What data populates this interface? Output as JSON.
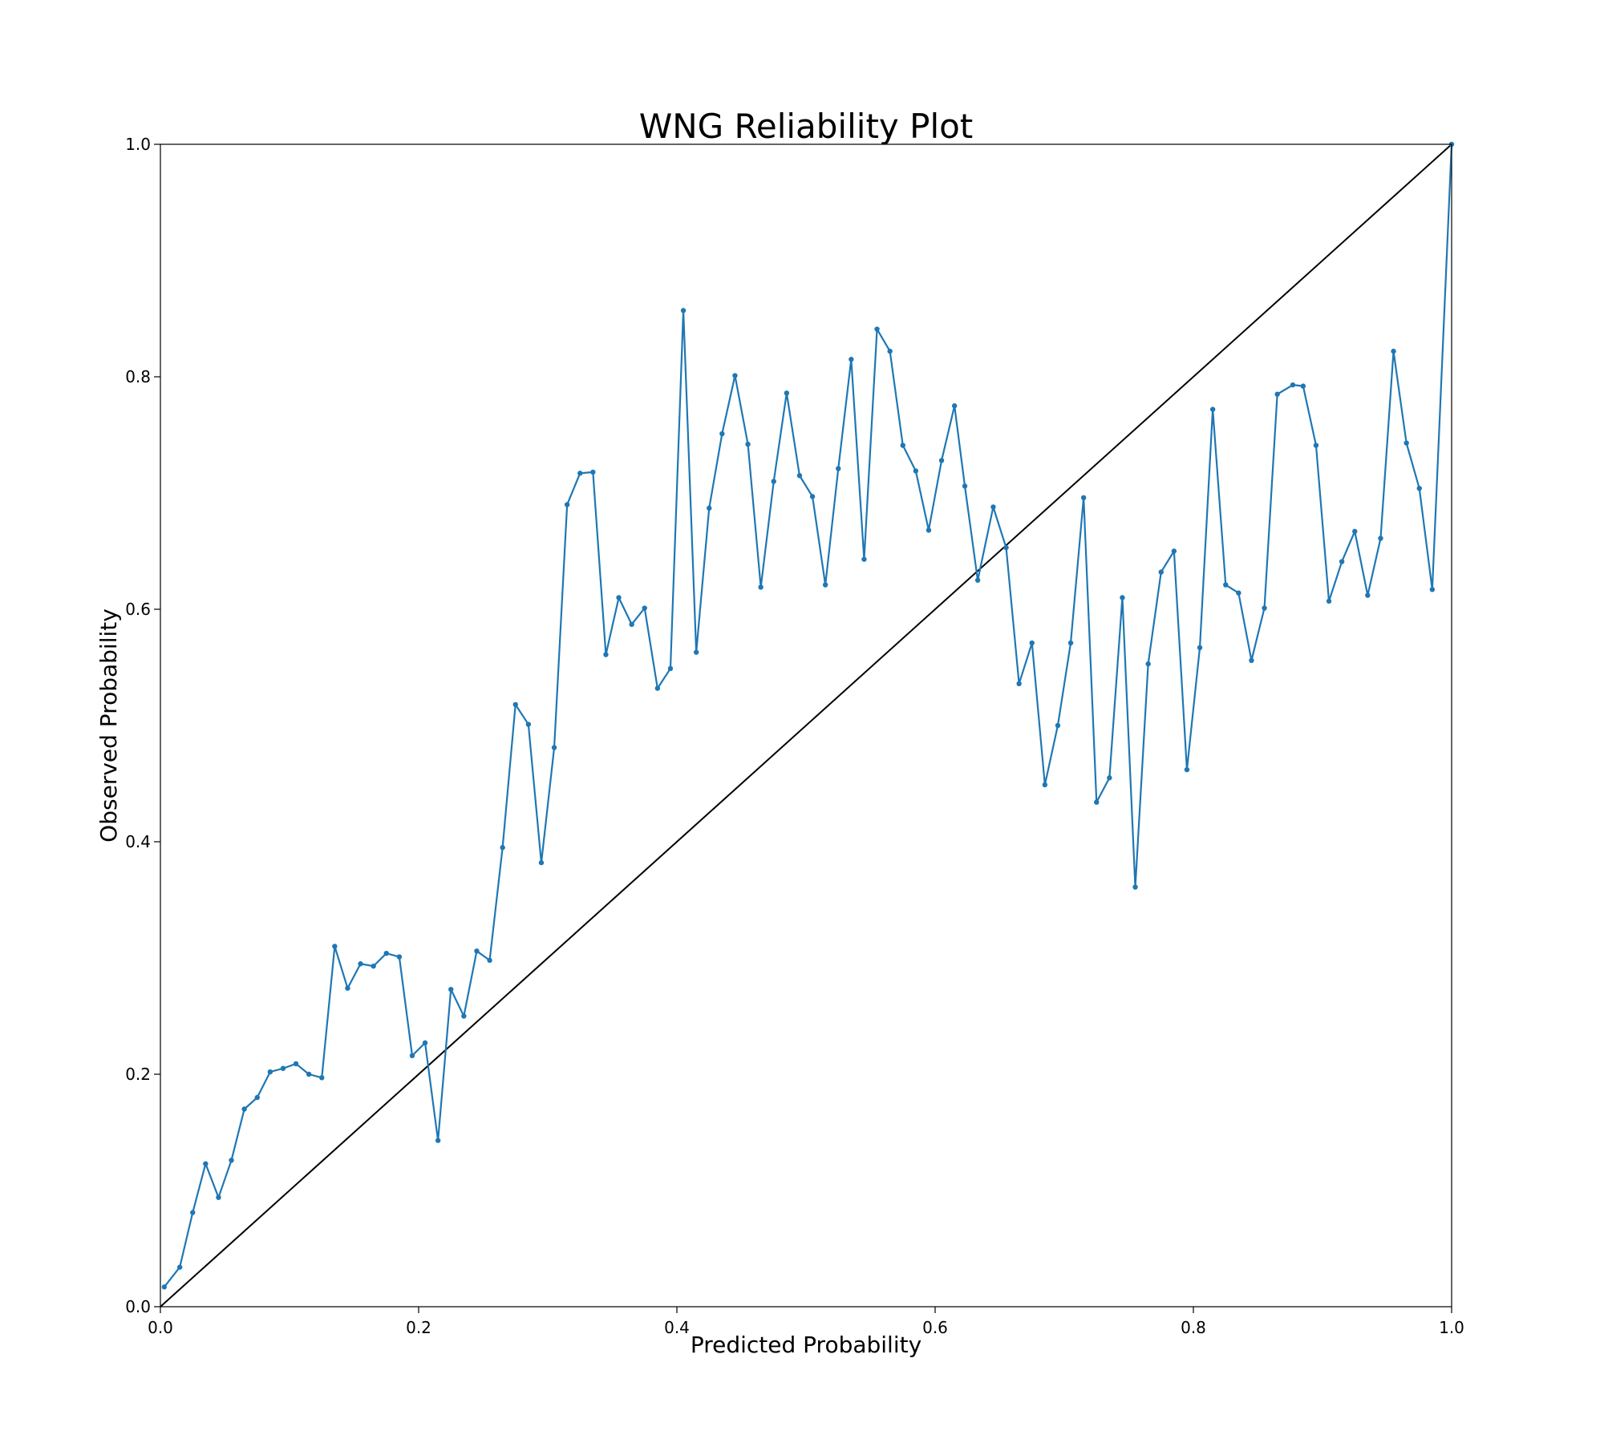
{
  "chart_data": {
    "type": "line",
    "title": "WNG Reliability Plot",
    "xlabel": "Predicted Probability",
    "ylabel": "Observed Probability",
    "xlim": [
      0.0,
      1.0
    ],
    "ylim": [
      0.0,
      1.0
    ],
    "x_ticks": [
      "0.0",
      "0.2",
      "0.4",
      "0.6",
      "0.8",
      "1.0"
    ],
    "y_ticks": [
      "0.0",
      "0.2",
      "0.4",
      "0.6",
      "0.8",
      "1.0"
    ],
    "grid": false,
    "legend": "none",
    "series": [
      {
        "color": "#1f77b4",
        "marker": "dot",
        "x": [
          0.003,
          0.015,
          0.025,
          0.035,
          0.045,
          0.055,
          0.065,
          0.075,
          0.085,
          0.095,
          0.105,
          0.115,
          0.125,
          0.135,
          0.145,
          0.155,
          0.165,
          0.175,
          0.185,
          0.195,
          0.205,
          0.215,
          0.225,
          0.235,
          0.245,
          0.255,
          0.265,
          0.275,
          0.285,
          0.295,
          0.305,
          0.315,
          0.325,
          0.335,
          0.345,
          0.355,
          0.365,
          0.375,
          0.385,
          0.395,
          0.405,
          0.415,
          0.425,
          0.435,
          0.445,
          0.455,
          0.465,
          0.475,
          0.485,
          0.495,
          0.505,
          0.515,
          0.525,
          0.535,
          0.545,
          0.555,
          0.565,
          0.575,
          0.585,
          0.595,
          0.605,
          0.615,
          0.623,
          0.633,
          0.645,
          0.655,
          0.665,
          0.675,
          0.685,
          0.695,
          0.705,
          0.715,
          0.725,
          0.735,
          0.745,
          0.755,
          0.765,
          0.775,
          0.785,
          0.795,
          0.805,
          0.815,
          0.825,
          0.835,
          0.845,
          0.855,
          0.865,
          0.877,
          0.885,
          0.895,
          0.905,
          0.915,
          0.925,
          0.935,
          0.945,
          0.955,
          0.965,
          0.975,
          0.985,
          1.0
        ],
        "y": [
          0.017,
          0.034,
          0.081,
          0.123,
          0.094,
          0.126,
          0.17,
          0.18,
          0.202,
          0.205,
          0.209,
          0.2,
          0.197,
          0.31,
          0.274,
          0.295,
          0.293,
          0.304,
          0.301,
          0.216,
          0.227,
          0.143,
          0.273,
          0.25,
          0.306,
          0.298,
          0.395,
          0.518,
          0.501,
          0.382,
          0.481,
          0.69,
          0.717,
          0.718,
          0.561,
          0.61,
          0.587,
          0.601,
          0.532,
          0.549,
          0.857,
          0.563,
          0.687,
          0.751,
          0.801,
          0.742,
          0.619,
          0.71,
          0.786,
          0.715,
          0.697,
          0.621,
          0.721,
          0.815,
          0.643,
          0.841,
          0.822,
          0.741,
          0.719,
          0.668,
          0.728,
          0.775,
          0.706,
          0.625,
          0.688,
          0.653,
          0.536,
          0.571,
          0.449,
          0.5,
          0.571,
          0.696,
          0.434,
          0.455,
          0.61,
          0.361,
          0.553,
          0.632,
          0.65,
          0.462,
          0.567,
          0.772,
          0.621,
          0.614,
          0.556,
          0.601,
          0.785,
          0.793,
          0.792,
          0.741,
          0.607,
          0.641,
          0.667,
          0.612,
          0.661,
          0.822,
          0.743,
          0.704,
          0.617,
          1.0
        ]
      },
      {
        "color": "#000000",
        "marker": "none",
        "x": [
          0.0,
          1.0
        ],
        "y": [
          0.0,
          1.0
        ]
      }
    ]
  }
}
